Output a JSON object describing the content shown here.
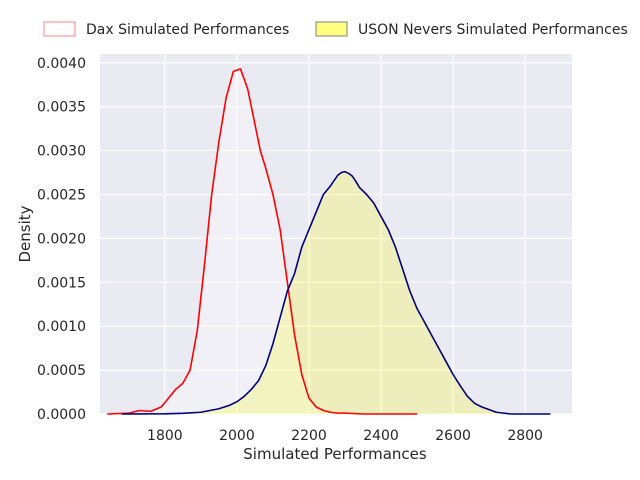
{
  "chart_data": {
    "type": "area",
    "title": "",
    "xlabel": "Simulated Performances",
    "ylabel": "Density",
    "xlim": [
      1620,
      2930
    ],
    "ylim": [
      0,
      0.0041
    ],
    "xticks": [
      1800,
      2000,
      2200,
      2400,
      2600,
      2800
    ],
    "xtick_labels": [
      "1800",
      "2000",
      "2200",
      "2400",
      "2600",
      "2800"
    ],
    "yticks": [
      0,
      0.0005,
      0.001,
      0.0015,
      0.002,
      0.0025,
      0.003,
      0.0035,
      0.004
    ],
    "ytick_labels": [
      "0.0000",
      "0.0005",
      "0.0010",
      "0.0015",
      "0.0020",
      "0.0025",
      "0.0030",
      "0.0035",
      "0.0040"
    ],
    "grid": true,
    "legend_position": "top",
    "background": "#eaeaf2",
    "series": [
      {
        "name": "Dax Simulated Performances",
        "color": "#ff0000",
        "fill": "#ffffff",
        "fill_opacity": 0.3,
        "x": [
          1640,
          1700,
          1730,
          1760,
          1790,
          1810,
          1830,
          1850,
          1870,
          1890,
          1910,
          1930,
          1950,
          1970,
          1990,
          2010,
          2030,
          2050,
          2065,
          2080,
          2100,
          2120,
          2140,
          2160,
          2180,
          2200,
          2220,
          2240,
          2260,
          2280,
          2300,
          2350,
          2400,
          2450,
          2500
        ],
        "y": [
          0,
          1e-05,
          4e-05,
          3e-05,
          8e-05,
          0.00018,
          0.00028,
          0.00035,
          0.0005,
          0.00095,
          0.0017,
          0.0025,
          0.0031,
          0.0036,
          0.0039,
          0.00393,
          0.0037,
          0.0033,
          0.003,
          0.0028,
          0.0025,
          0.0021,
          0.0015,
          0.0009,
          0.00045,
          0.00018,
          8e-05,
          4e-05,
          2e-05,
          1e-05,
          1e-05,
          0,
          0,
          0,
          0
        ]
      },
      {
        "name": "USON Nevers Simulated Performances",
        "color": "#000080",
        "fill": "#ffff00",
        "fill_opacity": 0.22,
        "x": [
          1680,
          1800,
          1850,
          1900,
          1950,
          1980,
          2000,
          2020,
          2040,
          2060,
          2080,
          2100,
          2120,
          2140,
          2160,
          2180,
          2200,
          2220,
          2240,
          2260,
          2280,
          2290,
          2300,
          2310,
          2320,
          2330,
          2340,
          2360,
          2380,
          2400,
          2420,
          2440,
          2460,
          2480,
          2500,
          2520,
          2540,
          2560,
          2580,
          2600,
          2620,
          2640,
          2660,
          2680,
          2700,
          2720,
          2740,
          2760,
          2780,
          2800,
          2830,
          2870
        ],
        "y": [
          0,
          2e-06,
          8e-06,
          2e-05,
          6e-05,
          0.0001,
          0.00014,
          0.0002,
          0.00028,
          0.00038,
          0.00055,
          0.0008,
          0.0011,
          0.0014,
          0.0016,
          0.0019,
          0.0021,
          0.0023,
          0.0025,
          0.0026,
          0.00272,
          0.00275,
          0.00276,
          0.00274,
          0.00271,
          0.00265,
          0.00258,
          0.0025,
          0.0024,
          0.00225,
          0.0021,
          0.0019,
          0.00165,
          0.0014,
          0.0012,
          0.00105,
          0.0009,
          0.00075,
          0.0006,
          0.00045,
          0.00032,
          0.0002,
          0.00012,
          8e-05,
          5e-05,
          2e-05,
          1e-05,
          0,
          0,
          0,
          0,
          0
        ]
      }
    ]
  }
}
